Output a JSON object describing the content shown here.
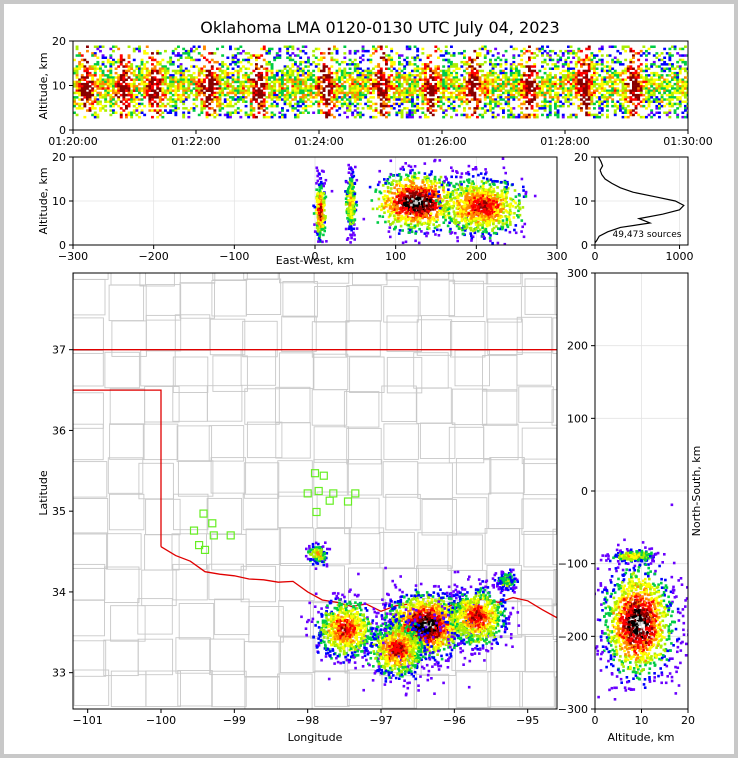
{
  "chart_data": {
    "title": "Oklahoma LMA 0120-0130 UTC July 04, 2023",
    "panels": [
      {
        "id": "time-height",
        "type": "heatmap",
        "ylabel": "Altitude, km",
        "yticks": [
          "0",
          "10",
          "20"
        ],
        "xticks": [
          "01:20:00",
          "01:22:00",
          "01:24:00",
          "01:26:00",
          "01:28:00",
          "01:30:00"
        ],
        "xlim": [
          "01:20:00",
          "01:30:00"
        ],
        "ylim": [
          0,
          20
        ],
        "density_peaks_minutes": [
          0.2,
          0.8,
          1.3,
          2.2,
          3.0,
          4.1,
          5.0,
          5.8,
          6.5,
          7.4,
          8.3,
          9.1
        ],
        "altitude_core_km": [
          5,
          15
        ]
      },
      {
        "id": "east-west-altitude",
        "type": "heatmap",
        "xlabel": "East-West, km",
        "ylabel": "Altitude, km",
        "xticks": [
          "−300",
          "−200",
          "−100",
          "0",
          "100",
          "200",
          "300"
        ],
        "yticks": [
          "0",
          "10",
          "20"
        ],
        "xlim": [
          -300,
          300
        ],
        "ylim": [
          0,
          20
        ],
        "clusters": [
          {
            "x": 5,
            "alt": 8,
            "peak": "high"
          },
          {
            "x": 43,
            "alt": 10,
            "peak": "medium"
          },
          {
            "x": 125,
            "alt": 10,
            "peak": "very high"
          },
          {
            "x": 205,
            "alt": 9,
            "peak": "high"
          }
        ]
      },
      {
        "id": "altitude-histogram",
        "type": "line",
        "xticks": [
          "0",
          "1000"
        ],
        "yticks": [
          "0",
          "10",
          "20"
        ],
        "xlim": [
          0,
          1100
        ],
        "ylim": [
          0,
          20
        ],
        "annotation": "49,473 sources",
        "altitude_km": [
          0.5,
          1,
          2,
          3,
          4,
          5,
          6,
          7,
          8,
          9,
          10,
          11,
          12,
          13,
          14,
          15,
          16,
          17,
          18,
          19,
          20
        ],
        "counts": [
          0,
          20,
          50,
          150,
          300,
          650,
          520,
          800,
          1000,
          1050,
          950,
          700,
          450,
          300,
          200,
          120,
          80,
          60,
          90,
          70,
          40
        ]
      },
      {
        "id": "plan-view",
        "type": "heatmap",
        "xlabel": "Longitude",
        "ylabel": "Latitude",
        "xticks": [
          "−101",
          "−100",
          "−99",
          "−98",
          "−97",
          "−96",
          "−95"
        ],
        "yticks": [
          "33",
          "34",
          "35",
          "36",
          "37"
        ],
        "xlim": [
          -101.2,
          -94.6
        ],
        "ylim": [
          32.55,
          37.95
        ],
        "stations": [
          [
            -97.9,
            35.47
          ],
          [
            -97.78,
            35.44
          ],
          [
            -98.0,
            35.22
          ],
          [
            -97.85,
            35.25
          ],
          [
            -97.65,
            35.22
          ],
          [
            -97.7,
            35.13
          ],
          [
            -97.45,
            35.12
          ],
          [
            -97.35,
            35.22
          ],
          [
            -97.88,
            34.99
          ],
          [
            -99.42,
            34.97
          ],
          [
            -99.3,
            34.85
          ],
          [
            -99.55,
            34.76
          ],
          [
            -99.28,
            34.7
          ],
          [
            -99.05,
            34.7
          ],
          [
            -99.48,
            34.58
          ],
          [
            -99.4,
            34.52
          ]
        ],
        "clusters": [
          {
            "lon": -96.4,
            "lat": 33.6,
            "peak": "very high"
          },
          {
            "lon": -96.8,
            "lat": 33.3,
            "peak": "high"
          },
          {
            "lon": -95.7,
            "lat": 33.7,
            "peak": "high"
          },
          {
            "lon": -97.5,
            "lat": 33.55,
            "peak": "high"
          },
          {
            "lon": -97.88,
            "lat": 34.48,
            "peak": "medium"
          },
          {
            "lon": -95.3,
            "lat": 34.15,
            "peak": "low"
          }
        ]
      },
      {
        "id": "altitude-north-south",
        "type": "heatmap",
        "xlabel": "Altitude, km",
        "ylabel": "North-South, km",
        "xticks": [
          "0",
          "10",
          "20"
        ],
        "yticks": [
          "−300",
          "−200",
          "−100",
          "0",
          "100",
          "200",
          "300"
        ],
        "xlim": [
          0,
          20
        ],
        "ylim": [
          -300,
          300
        ],
        "clusters": [
          {
            "alt": 9,
            "y": -180,
            "peak": "very high"
          },
          {
            "alt": 8,
            "y": -88,
            "peak": "medium"
          }
        ]
      }
    ],
    "colors": {
      "state_border": "#e00000",
      "county_border": "#c8c8c8",
      "station_marker": "#66ee22",
      "density_scale": [
        "#6a00ff",
        "#0000ff",
        "#00cc44",
        "#aaee00",
        "#ffff00",
        "#ff8800",
        "#ff0000",
        "#880000",
        "#000000",
        "#cccccc"
      ]
    }
  }
}
